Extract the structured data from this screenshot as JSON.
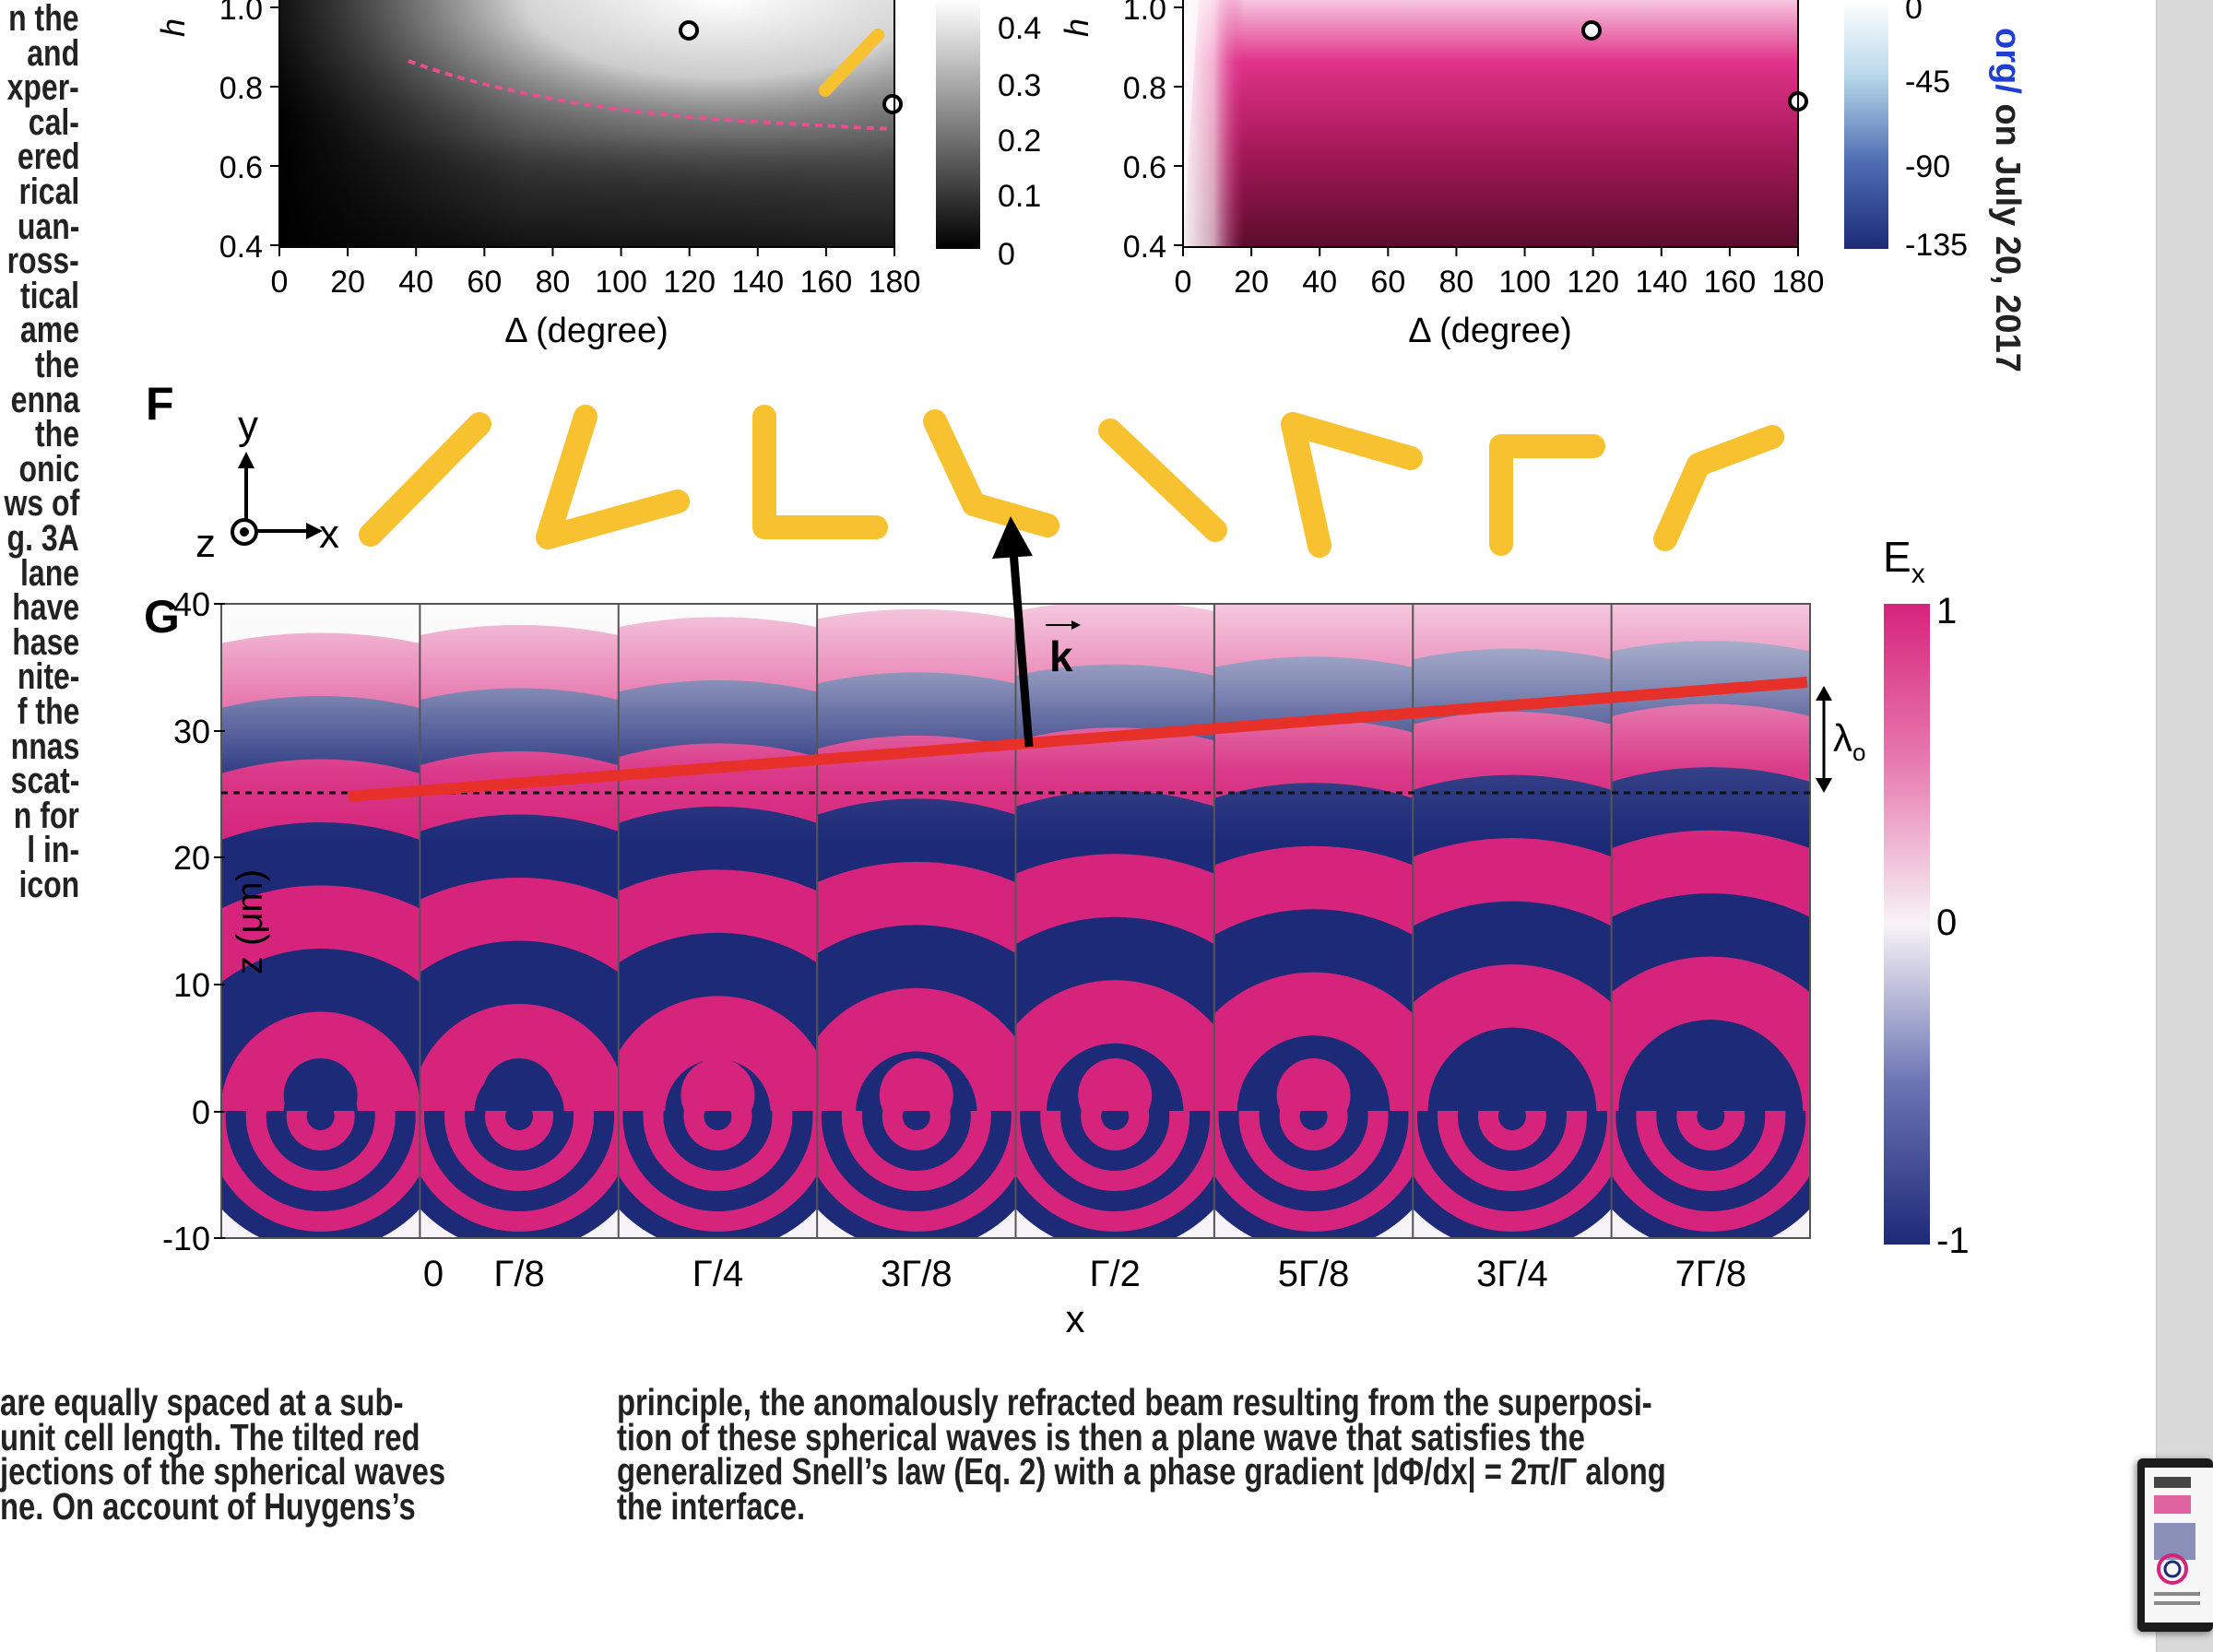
{
  "left_column_fragments": [
    "n the",
    "and",
    "xper-",
    "cal-",
    "ered",
    "rical",
    "uan-",
    "ross-",
    "tical",
    "ame",
    "the",
    "enna",
    "the",
    "onic",
    "ws of",
    "g. 3A",
    "lane",
    "have",
    "hase",
    "nite-",
    "f the",
    "nnas",
    "scat-",
    "n for",
    "l in-",
    "icon"
  ],
  "panel_d": {
    "y_axis_letter": "h",
    "y_ticks": [
      "1.0",
      "0.8",
      "0.6",
      "0.4"
    ],
    "x_ticks": [
      "0",
      "20",
      "40",
      "60",
      "80",
      "100",
      "120",
      "140",
      "160",
      "180"
    ],
    "x_label": "Δ (degree)",
    "colorbar_ticks": [
      "0.4",
      "0.3",
      "0.2",
      "0.1",
      "0"
    ]
  },
  "panel_e": {
    "y_axis_letter": "h",
    "y_ticks": [
      "1.0",
      "0.8",
      "0.6",
      "0.4"
    ],
    "x_ticks": [
      "0",
      "20",
      "40",
      "60",
      "80",
      "100",
      "120",
      "140",
      "160",
      "180"
    ],
    "x_label": "Δ (degree)",
    "colorbar_ticks": [
      "0",
      "-45",
      "-90",
      "-135"
    ]
  },
  "panel_f": {
    "label": "F",
    "axis_y": "y",
    "axis_z": "z",
    "axis_x": "x"
  },
  "panel_g": {
    "label": "G",
    "y_label": "z (μm)",
    "y_ticks": [
      "40",
      "30",
      "20",
      "10",
      "0",
      "-10"
    ],
    "x_ticks": [
      "0",
      "Γ/8",
      "Γ/4",
      "3Γ/8",
      "Γ/2",
      "5Γ/8",
      "3Γ/4",
      "7Γ/8"
    ],
    "x_label": "x",
    "colorbar_title": "E",
    "colorbar_title_sub": "x",
    "colorbar_ticks": [
      "1",
      "0",
      "-1"
    ],
    "k_label": "k",
    "lambda_label": "λ",
    "lambda_sub": "o"
  },
  "body_text_left": [
    "are equally spaced at a sub-",
    "unit cell length. The tilted red",
    "jections of the spherical waves",
    "ne. On account of Huygens’s"
  ],
  "body_text_right": [
    "principle, the anomalously refracted beam resulting from the superposi-",
    "tion of these spherical waves is then a plane wave that satisfies the",
    "generalized Snell’s law (Eq. 2) with a phase gradient |dΦ/dx| = 2π/Γ along",
    "the interface."
  ],
  "side_note": {
    "link_text": "org/",
    "date_text": " on July 20, 2017"
  },
  "colors": {
    "magenta": "#d6247c",
    "navy": "#1d2a78",
    "red_line": "#e8302a",
    "antenna_gold": "#f7c12f",
    "dashed_pink": "#e84f8f"
  }
}
